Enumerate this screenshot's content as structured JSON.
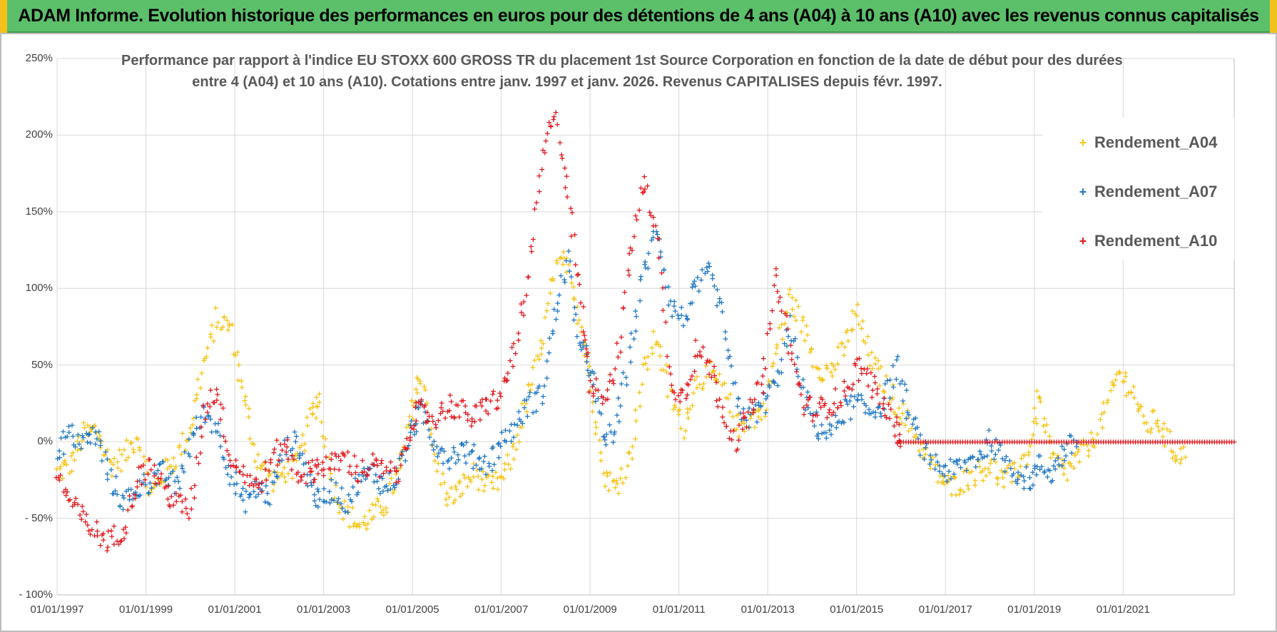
{
  "banner": {
    "title": "ADAM Informe. Evolution historique des performances en euros pour des détentions de 4 ans (A04) à 10 ans (A10) avec les revenus connus capitalisés"
  },
  "colors": {
    "banner_bg": "#5cc06a",
    "A04": "#f5c518",
    "A07": "#1f77c4",
    "A10": "#e3171d"
  },
  "chart_data": {
    "type": "scatter",
    "title_line1": "Performance par rapport à l'indice EU STOXX 600 GROSS TR  du placement 1st Source Corporation en fonction de la date de début pour des durées",
    "title_line2": "entre 4 (A04) et 10 ans (A10).  Cotations entre janv. 1997 et janv. 2026. Revenus CAPITALISES depuis févr. 1997.",
    "xlabel": "",
    "ylabel": "",
    "xlim": [
      1997.0,
      2023.5
    ],
    "ylim": [
      -100,
      250
    ],
    "y_ticks": [
      250,
      200,
      150,
      100,
      50,
      0,
      -50,
      -100
    ],
    "y_tick_labels": [
      "250%",
      "200%",
      "150%",
      "100%",
      "50%",
      "0%",
      "- 50%",
      "- 100%"
    ],
    "x_ticks": [
      1997,
      1999,
      2001,
      2003,
      2005,
      2007,
      2009,
      2011,
      2013,
      2015,
      2017,
      2019,
      2021
    ],
    "x_tick_labels": [
      "01/01/1997",
      "01/01/1999",
      "01/01/2001",
      "01/01/2003",
      "01/01/2005",
      "01/01/2007",
      "01/01/2009",
      "01/01/2011",
      "01/01/2013",
      "01/01/2015",
      "01/01/2017",
      "01/01/2019",
      "01/01/2021"
    ],
    "legend": {
      "position": "top-right",
      "entries": [
        "Rendement_A04",
        "Rendement_A07",
        "Rendement_A10"
      ]
    },
    "series": [
      {
        "name": "Rendement_A04",
        "color": "#f5c518",
        "x": [
          1997.0,
          1997.3,
          1997.6,
          1997.9,
          1998.2,
          1998.5,
          1998.8,
          1999.1,
          1999.4,
          1999.7,
          2000.0,
          2000.3,
          2000.6,
          2000.9,
          2001.2,
          2001.5,
          2001.8,
          2002.1,
          2002.4,
          2002.7,
          2002.9,
          2003.2,
          2003.5,
          2003.8,
          2004.1,
          2004.4,
          2004.7,
          2005.0,
          2005.2,
          2005.5,
          2005.8,
          2006.1,
          2006.4,
          2006.7,
          2007.0,
          2007.3,
          2007.6,
          2007.9,
          2008.2,
          2008.5,
          2008.8,
          2009.0,
          2009.3,
          2009.6,
          2009.9,
          2010.2,
          2010.5,
          2010.8,
          2011.1,
          2011.4,
          2011.7,
          2012.0,
          2012.3,
          2012.6,
          2012.9,
          2013.2,
          2013.5,
          2013.8,
          2014.1,
          2014.4,
          2014.7,
          2015.0,
          2015.3,
          2015.6,
          2015.9,
          2016.2,
          2016.5,
          2016.8,
          2017.1,
          2017.4,
          2017.7,
          2018.0,
          2018.3,
          2018.6,
          2018.9,
          2019.1,
          2019.4,
          2019.7,
          2020.0,
          2020.3,
          2020.6,
          2020.9,
          2021.2,
          2021.5,
          2021.8,
          2022.1,
          2022.4
        ],
        "y": [
          -20,
          -15,
          5,
          8,
          -15,
          -10,
          5,
          -35,
          -20,
          -10,
          10,
          50,
          80,
          75,
          30,
          -10,
          -25,
          -20,
          -15,
          15,
          30,
          -30,
          -45,
          -55,
          -48,
          -40,
          -20,
          20,
          45,
          -10,
          -38,
          -30,
          -20,
          -30,
          -25,
          -5,
          30,
          60,
          110,
          120,
          75,
          40,
          -20,
          -30,
          -10,
          45,
          70,
          30,
          10,
          40,
          45,
          35,
          10,
          15,
          20,
          60,
          95,
          75,
          50,
          45,
          60,
          85,
          55,
          40,
          25,
          10,
          -5,
          -20,
          -30,
          -25,
          -20,
          -15,
          -25,
          -20,
          -5,
          30,
          -10,
          -20,
          -10,
          0,
          20,
          45,
          35,
          10,
          15,
          -5,
          -10
        ]
      },
      {
        "name": "Rendement_A07",
        "color": "#1f77c4",
        "x": [
          1997.0,
          1997.3,
          1997.6,
          1997.9,
          1998.2,
          1998.5,
          1998.8,
          1999.1,
          1999.4,
          1999.7,
          2000.0,
          2000.3,
          2000.6,
          2000.9,
          2001.2,
          2001.5,
          2001.8,
          2002.1,
          2002.4,
          2002.7,
          2002.9,
          2003.2,
          2003.5,
          2003.8,
          2004.1,
          2004.4,
          2004.7,
          2005.0,
          2005.2,
          2005.5,
          2005.8,
          2006.1,
          2006.4,
          2006.7,
          2007.0,
          2007.3,
          2007.6,
          2007.9,
          2008.2,
          2008.5,
          2008.8,
          2009.0,
          2009.3,
          2009.6,
          2009.9,
          2010.2,
          2010.5,
          2010.8,
          2011.1,
          2011.4,
          2011.7,
          2012.0,
          2012.3,
          2012.6,
          2012.9,
          2013.2,
          2013.5,
          2013.8,
          2014.1,
          2014.4,
          2014.7,
          2015.0,
          2015.3,
          2015.6,
          2015.9,
          2016.2,
          2016.5,
          2016.8,
          2017.1,
          2017.4,
          2017.7,
          2018.0,
          2018.3,
          2018.6,
          2018.9,
          2019.1,
          2019.4,
          2019.7,
          2020.0
        ],
        "y": [
          -5,
          5,
          0,
          5,
          -25,
          -40,
          -30,
          -25,
          -20,
          -30,
          0,
          20,
          10,
          -20,
          -40,
          -30,
          -35,
          -5,
          0,
          -25,
          -40,
          -30,
          -40,
          -25,
          -20,
          -30,
          -20,
          10,
          20,
          0,
          -10,
          -5,
          -10,
          -15,
          0,
          10,
          25,
          30,
          80,
          120,
          60,
          50,
          0,
          10,
          60,
          110,
          140,
          90,
          80,
          100,
          110,
          80,
          25,
          15,
          25,
          40,
          75,
          30,
          10,
          5,
          20,
          25,
          20,
          25,
          50,
          15,
          -5,
          -15,
          -20,
          -15,
          -10,
          0,
          -10,
          -20,
          -25,
          -15,
          -20,
          -5,
          0
        ]
      },
      {
        "name": "Rendement_A10",
        "color": "#e3171d",
        "x": [
          1997.0,
          1997.3,
          1997.6,
          1997.9,
          1998.2,
          1998.5,
          1998.8,
          1999.1,
          1999.4,
          1999.7,
          2000.0,
          2000.3,
          2000.6,
          2000.9,
          2001.2,
          2001.5,
          2001.8,
          2002.1,
          2002.4,
          2002.7,
          2002.9,
          2003.2,
          2003.5,
          2003.8,
          2004.1,
          2004.4,
          2004.7,
          2005.0,
          2005.2,
          2005.5,
          2005.8,
          2006.1,
          2006.4,
          2006.7,
          2007.0,
          2007.3,
          2007.6,
          2007.9,
          2008.2,
          2008.5,
          2008.8,
          2009.0,
          2009.3,
          2009.6,
          2009.9,
          2010.2,
          2010.5,
          2010.8,
          2011.1,
          2011.4,
          2011.7,
          2012.0,
          2012.3,
          2012.6,
          2012.9,
          2013.2,
          2013.5,
          2013.8,
          2014.1,
          2014.4,
          2014.7,
          2015.0,
          2015.3,
          2015.6,
          2015.9,
          2016.0,
          2016.5,
          2017.0,
          2017.5,
          2018.0,
          2018.5,
          2019.0,
          2019.5,
          2020.0,
          2020.5,
          2021.0,
          2021.5,
          2022.0,
          2022.5,
          2023.0,
          2023.5
        ],
        "y": [
          -20,
          -40,
          -50,
          -60,
          -65,
          -55,
          -25,
          -15,
          -30,
          -40,
          -45,
          20,
          35,
          -10,
          -20,
          -30,
          -15,
          0,
          -20,
          -20,
          -15,
          -15,
          -10,
          -20,
          -15,
          -20,
          -20,
          15,
          20,
          15,
          25,
          20,
          15,
          25,
          30,
          60,
          100,
          180,
          220,
          160,
          90,
          40,
          30,
          50,
          120,
          170,
          140,
          40,
          30,
          60,
          50,
          20,
          0,
          20,
          40,
          110,
          60,
          25,
          20,
          25,
          30,
          50,
          40,
          25,
          10,
          0,
          0,
          0,
          0,
          0,
          0,
          0,
          0,
          0,
          0,
          0,
          0,
          0,
          0,
          0,
          0
        ]
      }
    ]
  }
}
